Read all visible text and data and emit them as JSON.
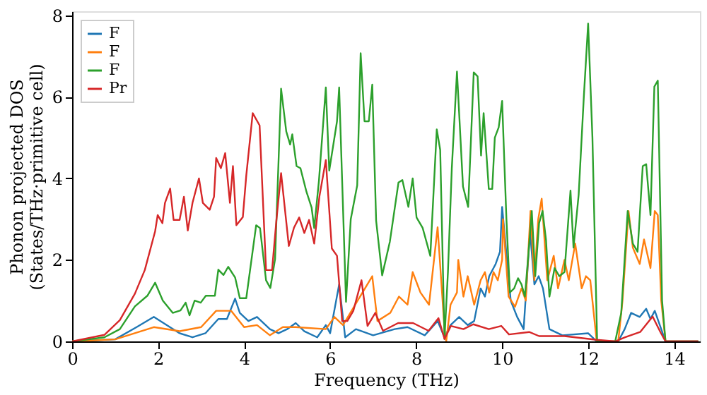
{
  "chart_data": {
    "type": "line",
    "xlabel": "Frequency (THz)",
    "ylabel": "Phonon projected DOS\n(States/THz·primitive cell)",
    "xlim": [
      0,
      14.6
    ],
    "xticks": [
      0,
      2,
      4,
      6,
      8,
      10,
      12,
      14
    ],
    "ylim": [
      0,
      8.1
    ],
    "yticks": [
      0,
      2,
      4,
      6,
      8
    ],
    "grid": false,
    "legend": "top left",
    "marker": "none",
    "line_style": "solid",
    "series": [
      {
        "name": "F",
        "color": "#1f77b4",
        "x": [
          0,
          1.0,
          1.5,
          1.9,
          2.5,
          2.8,
          3.1,
          3.4,
          3.6,
          3.79,
          3.9,
          4.1,
          4.3,
          4.6,
          4.8,
          5.0,
          5.2,
          5.4,
          5.7,
          5.9,
          6.0,
          6.21,
          6.35,
          6.6,
          7.0,
          7.5,
          7.8,
          8.2,
          8.5,
          8.66,
          8.8,
          9.0,
          9.2,
          9.35,
          9.5,
          9.6,
          9.7,
          9.85,
          9.95,
          10.0,
          10.2,
          10.35,
          10.5,
          10.65,
          10.75,
          10.85,
          10.95,
          11.1,
          11.4,
          12.0,
          12.2,
          12.7,
          12.85,
          13.0,
          13.2,
          13.35,
          13.45,
          13.55,
          13.7,
          13.8,
          14.56
        ],
        "values": [
          0,
          0.05,
          0.35,
          0.6,
          0.2,
          0.1,
          0.2,
          0.55,
          0.55,
          1.05,
          0.7,
          0.5,
          0.6,
          0.3,
          0.2,
          0.3,
          0.45,
          0.25,
          0.1,
          0.4,
          0.2,
          1.4,
          0.1,
          0.3,
          0.15,
          0.3,
          0.35,
          0.15,
          0.5,
          0.1,
          0.4,
          0.6,
          0.4,
          0.5,
          1.3,
          1.1,
          1.6,
          1.9,
          2.2,
          3.3,
          1.0,
          0.6,
          0.3,
          2.7,
          1.4,
          1.6,
          1.3,
          0.3,
          0.15,
          0.2,
          0,
          0,
          0.3,
          0.7,
          0.6,
          0.8,
          0.55,
          0.75,
          0.3,
          0,
          0
        ]
      },
      {
        "name": "F",
        "color": "#ff7f0e",
        "x": [
          0,
          1.0,
          1.9,
          2.5,
          3.0,
          3.35,
          3.7,
          4.0,
          4.3,
          4.6,
          4.9,
          5.2,
          5.9,
          6.1,
          6.3,
          6.98,
          7.1,
          7.4,
          7.6,
          7.8,
          7.92,
          8.1,
          8.3,
          8.5,
          8.66,
          8.7,
          8.8,
          8.95,
          8.98,
          9.1,
          9.2,
          9.35,
          9.5,
          9.6,
          9.7,
          9.8,
          9.9,
          10.0,
          10.02,
          10.15,
          10.3,
          10.45,
          10.55,
          10.66,
          10.75,
          10.84,
          10.92,
          11.05,
          11.2,
          11.3,
          11.45,
          11.55,
          11.7,
          11.85,
          11.95,
          12.05,
          12.2,
          12.7,
          12.8,
          12.94,
          13.04,
          13.2,
          13.3,
          13.45,
          13.55,
          13.62,
          13.7,
          13.8,
          14.56
        ],
        "values": [
          0,
          0.05,
          0.35,
          0.25,
          0.35,
          0.75,
          0.75,
          0.35,
          0.4,
          0.15,
          0.35,
          0.35,
          0.3,
          0.6,
          0.4,
          1.6,
          0.5,
          0.7,
          1.1,
          0.9,
          1.7,
          1.2,
          0.9,
          2.8,
          0.3,
          0,
          0.9,
          1.2,
          2.0,
          1.1,
          1.6,
          0.9,
          1.5,
          1.7,
          1.2,
          1.7,
          1.5,
          2.0,
          3.0,
          1.1,
          0.85,
          1.3,
          1.0,
          3.2,
          1.5,
          3.0,
          3.5,
          1.5,
          2.1,
          1.3,
          2.0,
          1.5,
          2.4,
          1.3,
          1.6,
          1.5,
          0,
          0,
          1.0,
          3.2,
          2.3,
          1.9,
          2.5,
          1.8,
          3.2,
          3.1,
          1.0,
          0,
          0
        ]
      },
      {
        "name": "F",
        "color": "#2ca02c",
        "x": [
          0,
          0.75,
          1.11,
          1.46,
          1.75,
          1.93,
          2.11,
          2.34,
          2.52,
          2.64,
          2.73,
          2.85,
          2.99,
          3.11,
          3.32,
          3.4,
          3.52,
          3.63,
          3.79,
          3.9,
          4.05,
          4.28,
          4.37,
          4.51,
          4.61,
          4.72,
          4.86,
          4.98,
          5.07,
          5.12,
          5.22,
          5.31,
          5.45,
          5.57,
          5.63,
          5.74,
          5.9,
          5.98,
          6.16,
          6.21,
          6.37,
          6.48,
          6.63,
          6.71,
          6.8,
          6.9,
          6.98,
          7.07,
          7.21,
          7.39,
          7.59,
          7.68,
          7.82,
          7.92,
          8.01,
          8.15,
          8.33,
          8.48,
          8.56,
          8.66,
          8.74,
          8.83,
          8.95,
          9.09,
          9.21,
          9.34,
          9.43,
          9.51,
          9.57,
          9.69,
          9.77,
          9.83,
          9.92,
          10.0,
          10.1,
          10.18,
          10.28,
          10.37,
          10.45,
          10.53,
          10.6,
          10.69,
          10.77,
          10.86,
          10.94,
          11.02,
          11.1,
          11.22,
          11.33,
          11.45,
          11.59,
          11.66,
          11.78,
          11.9,
          12.0,
          12.1,
          12.21,
          12.63,
          12.77,
          12.92,
          13.04,
          13.15,
          13.27,
          13.35,
          13.45,
          13.54,
          13.62,
          13.72,
          13.8,
          14.56
        ],
        "values": [
          0,
          0.1,
          0.3,
          0.86,
          1.12,
          1.44,
          1.0,
          0.7,
          0.76,
          0.95,
          0.64,
          1.0,
          0.95,
          1.12,
          1.12,
          1.76,
          1.63,
          1.83,
          1.57,
          1.06,
          1.06,
          2.85,
          2.78,
          1.5,
          1.31,
          2.02,
          6.2,
          5.15,
          4.83,
          5.08,
          4.3,
          4.25,
          3.67,
          3.28,
          2.78,
          3.94,
          6.23,
          4.19,
          5.4,
          6.23,
          0.97,
          3.0,
          3.83,
          7.07,
          5.4,
          5.4,
          6.3,
          2.96,
          1.62,
          2.45,
          3.9,
          3.96,
          3.3,
          4.0,
          3.04,
          2.79,
          2.1,
          5.2,
          4.7,
          0.06,
          1.7,
          4.25,
          6.62,
          3.8,
          3.3,
          6.6,
          6.5,
          4.56,
          5.6,
          3.74,
          3.74,
          5.0,
          5.25,
          5.9,
          3.0,
          1.2,
          1.3,
          1.55,
          1.4,
          1.1,
          2.0,
          3.2,
          1.6,
          2.9,
          3.2,
          2.5,
          1.1,
          1.8,
          1.6,
          1.7,
          3.7,
          2.3,
          3.6,
          6.0,
          7.8,
          5.0,
          0,
          0,
          0.7,
          3.2,
          2.4,
          2.2,
          4.3,
          4.35,
          3.1,
          6.25,
          6.4,
          1.0,
          0,
          0
        ]
      },
      {
        "name": "Pr",
        "color": "#d62728",
        "x": [
          0,
          0.75,
          1.11,
          1.46,
          1.69,
          1.93,
          1.99,
          2.1,
          2.16,
          2.28,
          2.36,
          2.5,
          2.6,
          2.69,
          2.8,
          2.95,
          3.04,
          3.2,
          3.3,
          3.35,
          3.46,
          3.56,
          3.67,
          3.74,
          3.82,
          3.97,
          4.05,
          4.2,
          4.36,
          4.51,
          4.65,
          4.75,
          4.86,
          5.04,
          5.16,
          5.28,
          5.4,
          5.51,
          5.63,
          5.75,
          5.9,
          6.04,
          6.16,
          6.28,
          6.4,
          6.54,
          6.73,
          6.87,
          7.05,
          7.23,
          7.58,
          7.93,
          8.29,
          8.52,
          8.66,
          8.81,
          9.1,
          9.33,
          9.69,
          9.98,
          10.16,
          10.63,
          10.86,
          11.45,
          12.2,
          12.63,
          12.86,
          13.21,
          13.5,
          13.68,
          13.8,
          14.56
        ],
        "values": [
          0,
          0.16,
          0.52,
          1.17,
          1.75,
          2.7,
          3.1,
          2.9,
          3.4,
          3.75,
          2.98,
          2.98,
          3.55,
          2.72,
          3.4,
          4.0,
          3.4,
          3.23,
          3.55,
          4.5,
          4.25,
          4.62,
          3.4,
          4.3,
          2.85,
          3.05,
          4.07,
          5.6,
          5.3,
          1.75,
          1.75,
          2.96,
          4.13,
          2.34,
          2.79,
          3.04,
          2.66,
          2.98,
          2.4,
          3.55,
          4.45,
          2.28,
          2.1,
          0.5,
          0.5,
          0.75,
          1.5,
          0.38,
          0.7,
          0.26,
          0.45,
          0.45,
          0.26,
          0.57,
          0.06,
          0.38,
          0.3,
          0.42,
          0.3,
          0.38,
          0.17,
          0.23,
          0.13,
          0.13,
          0.04,
          0,
          0.1,
          0.23,
          0.61,
          0.23,
          0,
          0
        ]
      }
    ]
  }
}
